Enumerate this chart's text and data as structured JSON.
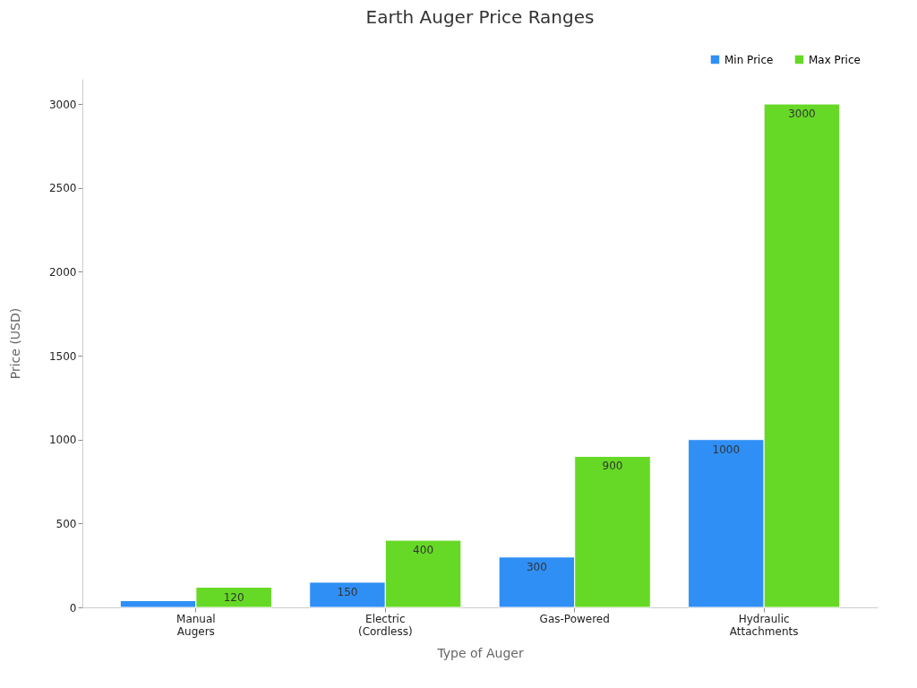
{
  "chart_data": {
    "type": "bar",
    "title": "Earth Auger Price Ranges",
    "xlabel": "Type of Auger",
    "ylabel": "Price (USD)",
    "categories": [
      "Manual\nAugers",
      "Electric\n(Cordless)",
      "Gas-Powered",
      "Hydraulic\nAttachments"
    ],
    "series": [
      {
        "name": "Min Price",
        "color": "#2f8ff5",
        "values": [
          40,
          150,
          300,
          1000
        ],
        "value_labels": [
          null,
          "150",
          "300",
          "1000"
        ]
      },
      {
        "name": "Max Price",
        "color": "#66d926",
        "values": [
          120,
          400,
          900,
          3000
        ],
        "value_labels": [
          "120",
          "400",
          "900",
          "3000"
        ]
      }
    ],
    "ylim": [
      0,
      3150
    ],
    "yticks": [
      0,
      500,
      1000,
      1500,
      2000,
      2500,
      3000
    ],
    "grid": false,
    "legend": "top right"
  }
}
